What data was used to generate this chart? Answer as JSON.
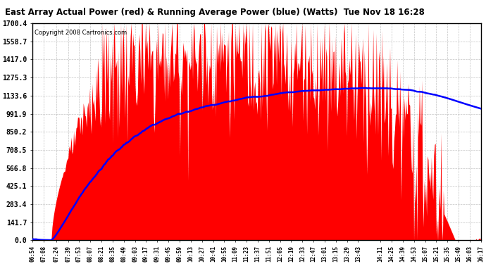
{
  "title": "East Array Actual Power (red) & Running Average Power (blue) (Watts)  Tue Nov 18 16:28",
  "copyright": "Copyright 2008 Cartronics.com",
  "y_ticks": [
    0.0,
    141.7,
    283.4,
    425.1,
    566.8,
    708.5,
    850.2,
    991.9,
    1133.6,
    1275.3,
    1417.0,
    1558.7,
    1700.4
  ],
  "ymax": 1700.4,
  "bg_color": "#ffffff",
  "plot_bg_color": "#ffffff",
  "grid_color": "#aaaaaa",
  "bar_color": "#ff0000",
  "avg_color": "#0000ff",
  "x_labels": [
    "06:54",
    "07:08",
    "07:24",
    "07:39",
    "07:53",
    "08:07",
    "08:21",
    "08:35",
    "08:49",
    "09:03",
    "09:17",
    "09:31",
    "09:45",
    "09:59",
    "10:13",
    "10:27",
    "10:41",
    "10:55",
    "11:09",
    "11:23",
    "11:37",
    "11:51",
    "12:05",
    "12:19",
    "12:33",
    "12:47",
    "13:01",
    "13:15",
    "13:29",
    "13:43",
    "14:11",
    "14:25",
    "14:39",
    "14:53",
    "15:07",
    "15:21",
    "15:35",
    "15:49",
    "16:03",
    "16:17"
  ],
  "figsize": [
    6.9,
    3.75
  ],
  "dpi": 100
}
